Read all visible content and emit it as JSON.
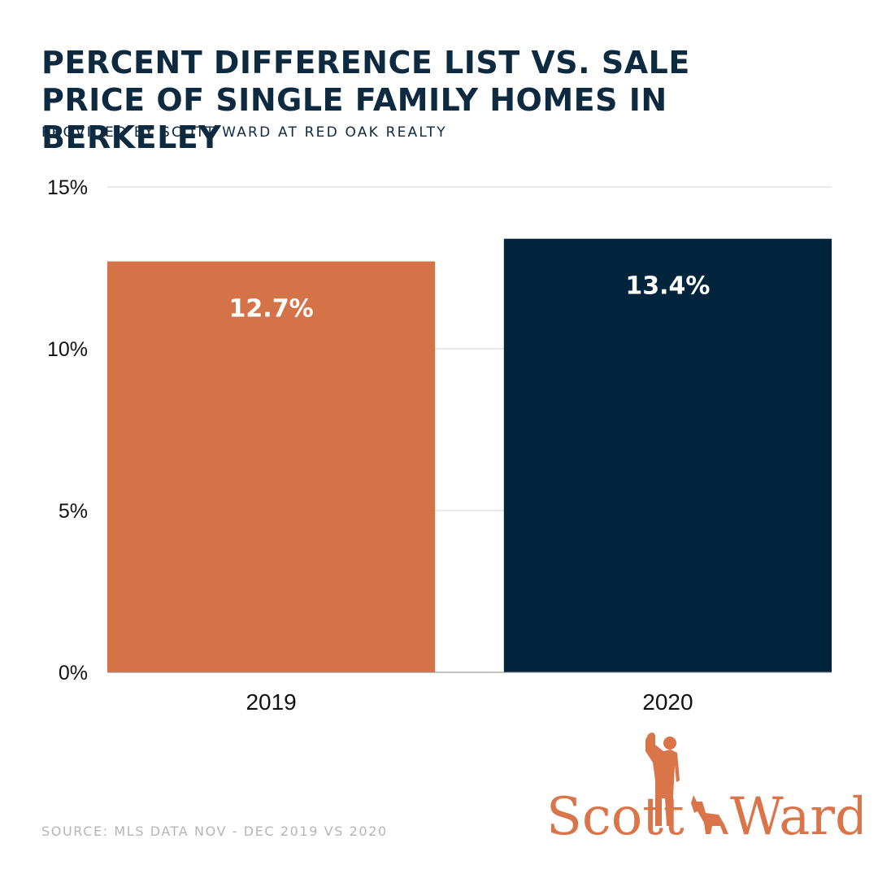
{
  "header": {
    "title": "PERCENT DIFFERENCE LIST VS. SALE PRICE OF SINGLE FAMILY HOMES IN BERKELEY",
    "subtitle": "PROVIDED BY SCOTT WARD AT RED OAK REALTY"
  },
  "footer": {
    "source": "SOURCE: MLS DATA NOV - DEC 2019 VS 2020"
  },
  "logo": {
    "first_name": "Scott",
    "last_name": "Ward"
  },
  "colors": {
    "orange": "#d57348",
    "navy": "#02253d",
    "grid": "#d3d3d3",
    "title": "#0d2a40"
  },
  "chart_data": {
    "type": "bar",
    "title": "PERCENT DIFFERENCE LIST VS. SALE PRICE OF SINGLE FAMILY HOMES IN BERKELEY",
    "xlabel": "",
    "ylabel": "",
    "categories": [
      "2019",
      "2020"
    ],
    "values": [
      12.7,
      13.4
    ],
    "value_labels": [
      "12.7%",
      "13.4%"
    ],
    "bar_colors": [
      "#d57348",
      "#02253d"
    ],
    "ylim": [
      0,
      15
    ],
    "yticks": [
      0,
      5,
      10,
      15
    ],
    "ytick_labels": [
      "0%",
      "5%",
      "10%",
      "15%"
    ],
    "grid": true
  }
}
